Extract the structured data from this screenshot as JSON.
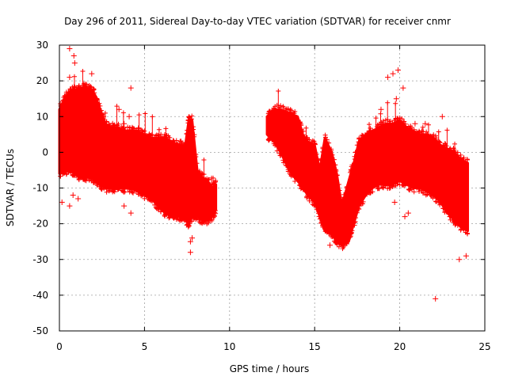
{
  "chart_data": {
    "type": "scatter",
    "title": "Day 296 of 2011, Sidereal Day-to-day VTEC variation (SDTVAR) for receiver cnmr",
    "xlabel": "GPS time / hours",
    "ylabel": "SDTVAR / TECUs",
    "xlim": [
      0,
      25
    ],
    "ylim": [
      -50,
      30
    ],
    "xticks": [
      0,
      5,
      10,
      15,
      20,
      25
    ],
    "yticks": [
      -50,
      -40,
      -30,
      -20,
      -10,
      0,
      10,
      20,
      30
    ],
    "grid": true,
    "marker": "+",
    "color": "#ff0000",
    "series": [
      {
        "name": "SDTVAR band",
        "description": "dense band of plus markers between envelope curves",
        "segments": [
          {
            "x": [
              0.0,
              0.3,
              0.6,
              0.9,
              1.2,
              1.5,
              1.8,
              2.1,
              2.4,
              2.7,
              3.0,
              3.4,
              3.8,
              4.2,
              4.6,
              5.0,
              5.4,
              5.8,
              6.2,
              6.6,
              7.0,
              7.4,
              7.6,
              7.8,
              8.1,
              8.4,
              8.7,
              9.0,
              9.2
            ],
            "upper": [
              12,
              15,
              17,
              17.5,
              18,
              18,
              18,
              16,
              12,
              8,
              7,
              7,
              6,
              6,
              6,
              5,
              4,
              4,
              4,
              3,
              2,
              2,
              9,
              9,
              -5,
              -7,
              -8,
              -10,
              -9
            ],
            "lower": [
              -6,
              -5,
              -5,
              -6,
              -7,
              -7,
              -7,
              -8,
              -9,
              -10,
              -10,
              -10,
              -10,
              -10,
              -11,
              -12,
              -13,
              -15,
              -17,
              -18,
              -18,
              -19,
              -20,
              -18,
              -18,
              -19,
              -19,
              -18,
              -16
            ]
          },
          {
            "x": [
              12.2,
              12.6,
              13.0,
              13.5,
              14.0,
              14.3,
              14.6,
              15.0,
              15.3,
              15.6,
              16.0,
              16.3,
              16.6,
              17.0,
              17.3,
              17.6,
              18.0,
              18.4,
              18.8,
              19.2,
              19.6,
              20.0,
              20.4,
              20.8,
              21.2,
              21.6,
              22.0,
              22.4,
              22.8,
              23.2,
              23.6,
              24.0
            ],
            "upper": [
              10,
              12,
              12,
              11,
              10,
              5,
              3,
              2,
              -5,
              4,
              0,
              -6,
              -15,
              -8,
              -3,
              3,
              5,
              6,
              7,
              8,
              8,
              9,
              7,
              6,
              5,
              5,
              4,
              2,
              1,
              0,
              -2,
              -3
            ],
            "lower": [
              5,
              3,
              0,
              -5,
              -8,
              -10,
              -12,
              -14,
              -18,
              -22,
              -23,
              -25,
              -26,
              -25,
              -20,
              -15,
              -12,
              -10,
              -9,
              -9,
              -9,
              -8,
              -9,
              -10,
              -10,
              -11,
              -12,
              -14,
              -17,
              -19,
              -21,
              -22
            ]
          }
        ],
        "outliers": [
          {
            "x": 0.6,
            "y": 29
          },
          {
            "x": 0.85,
            "y": 27
          },
          {
            "x": 0.9,
            "y": 25
          },
          {
            "x": 0.6,
            "y": 21
          },
          {
            "x": 0.8,
            "y": -12
          },
          {
            "x": 1.1,
            "y": -13
          },
          {
            "x": 0.15,
            "y": -14
          },
          {
            "x": 0.6,
            "y": -15
          },
          {
            "x": 1.9,
            "y": 22
          },
          {
            "x": 3.5,
            "y": 12
          },
          {
            "x": 3.8,
            "y": 8
          },
          {
            "x": 4.1,
            "y": 10
          },
          {
            "x": 4.2,
            "y": 18
          },
          {
            "x": 3.8,
            "y": -15
          },
          {
            "x": 4.2,
            "y": -17
          },
          {
            "x": 5.2,
            "y": -13
          },
          {
            "x": 7.7,
            "y": -28
          },
          {
            "x": 7.7,
            "y": -25
          },
          {
            "x": 7.8,
            "y": -24
          },
          {
            "x": 15.9,
            "y": -26
          },
          {
            "x": 16.7,
            "y": -26
          },
          {
            "x": 18.9,
            "y": 12
          },
          {
            "x": 19.3,
            "y": 21
          },
          {
            "x": 19.6,
            "y": 22
          },
          {
            "x": 19.9,
            "y": 23
          },
          {
            "x": 20.2,
            "y": 18
          },
          {
            "x": 19.8,
            "y": 15
          },
          {
            "x": 20.9,
            "y": 8
          },
          {
            "x": 21.5,
            "y": 8
          },
          {
            "x": 20.3,
            "y": -18
          },
          {
            "x": 20.5,
            "y": -17
          },
          {
            "x": 19.7,
            "y": -14
          },
          {
            "x": 19.4,
            "y": -10
          },
          {
            "x": 22.1,
            "y": -41
          },
          {
            "x": 23.5,
            "y": -30
          },
          {
            "x": 23.9,
            "y": -29
          },
          {
            "x": 23.9,
            "y": -16
          },
          {
            "x": 23.9,
            "y": -10
          },
          {
            "x": 22.5,
            "y": 10
          }
        ]
      }
    ]
  }
}
